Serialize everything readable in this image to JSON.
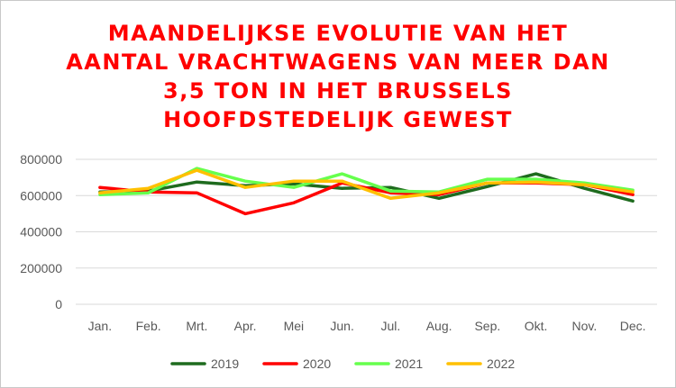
{
  "chart_data": {
    "type": "line",
    "title_lines": [
      "MAANDELIJKSE EVOLUTIE VAN HET",
      "AANTAL VRACHTWAGENS VAN MEER DAN",
      "3,5 TON IN HET BRUSSELS",
      "HOOFDSTEDELIJK GEWEST"
    ],
    "categories": [
      "Jan.",
      "Feb.",
      "Mrt.",
      "Apr.",
      "Mei",
      "Jun.",
      "Jul.",
      "Aug.",
      "Sep.",
      "Okt.",
      "Nov.",
      "Dec."
    ],
    "y_ticks": [
      "0",
      "200000",
      "400000",
      "600000",
      "800000"
    ],
    "ylim": [
      0,
      800000
    ],
    "grid": "horizontal",
    "legend_position": "bottom",
    "series": [
      {
        "name": "2019",
        "color": "#1e6b1e",
        "values": [
          620000,
          625000,
          675000,
          655000,
          665000,
          640000,
          645000,
          585000,
          650000,
          720000,
          640000,
          570000
        ]
      },
      {
        "name": "2020",
        "color": "#ff0000",
        "values": [
          645000,
          620000,
          615000,
          500000,
          560000,
          670000,
          615000,
          605000,
          670000,
          670000,
          660000,
          605000
        ]
      },
      {
        "name": "2021",
        "color": "#66ff4d",
        "values": [
          605000,
          615000,
          750000,
          680000,
          645000,
          720000,
          625000,
          620000,
          690000,
          690000,
          670000,
          630000
        ]
      },
      {
        "name": "2022",
        "color": "#ffc000",
        "values": [
          615000,
          640000,
          740000,
          645000,
          680000,
          680000,
          585000,
          615000,
          670000,
          675000,
          660000,
          620000
        ]
      }
    ]
  }
}
